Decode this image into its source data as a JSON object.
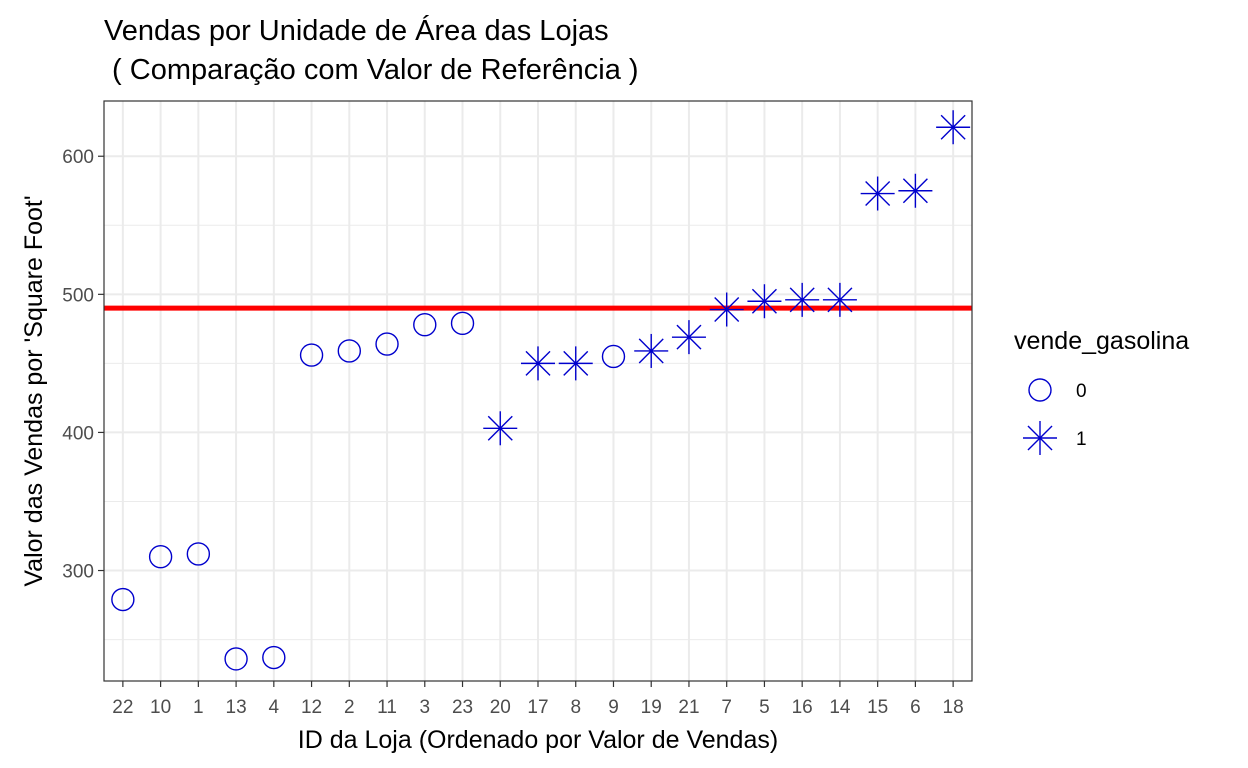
{
  "chart_data": {
    "type": "scatter",
    "title_line1": "Vendas por Unidade de Área das Lojas",
    "title_line2": " ( Comparação com Valor de Referência )",
    "xlabel": "ID da Loja (Ordenado por Valor de Vendas)",
    "ylabel": "Valor das Vendas por 'Square Foot'",
    "ylim": [
      220,
      640
    ],
    "y_ticks": [
      300,
      400,
      500,
      600
    ],
    "reference_line": {
      "y": 490,
      "color": "#ff0000"
    },
    "point_color": "#0000cd",
    "categories": [
      "22",
      "10",
      "1",
      "13",
      "4",
      "12",
      "2",
      "11",
      "3",
      "23",
      "20",
      "17",
      "8",
      "9",
      "19",
      "21",
      "7",
      "5",
      "16",
      "14",
      "15",
      "6",
      "18"
    ],
    "values": [
      279,
      310,
      312,
      236,
      237,
      456,
      459,
      464,
      478,
      479,
      403,
      450,
      450,
      455,
      459,
      469,
      489,
      495,
      496,
      496,
      573,
      575,
      621
    ],
    "vende_gasolina": [
      "0",
      "0",
      "0",
      "0",
      "0",
      "0",
      "0",
      "0",
      "0",
      "0",
      "1",
      "1",
      "1",
      "0",
      "1",
      "1",
      "1",
      "1",
      "1",
      "1",
      "1",
      "1",
      "1"
    ],
    "grid": true,
    "legend": {
      "title": "vende_gasolina",
      "position": "right",
      "items": [
        {
          "label": "0",
          "shape": "circle-open"
        },
        {
          "label": "1",
          "shape": "asterisk"
        }
      ]
    }
  }
}
